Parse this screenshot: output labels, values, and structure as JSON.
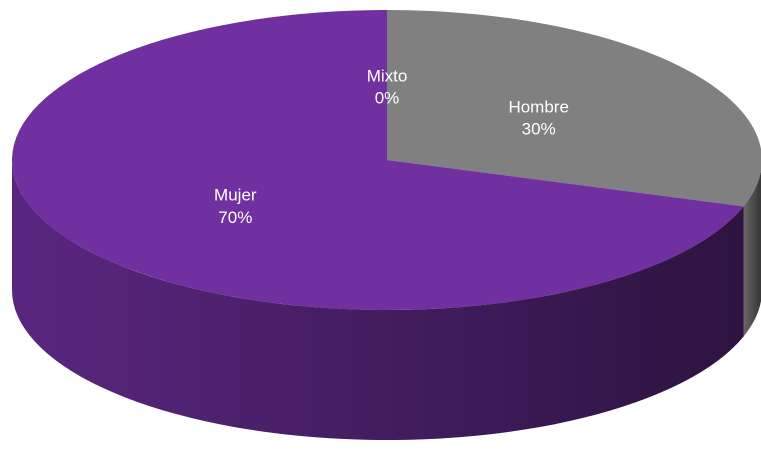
{
  "chart_data": {
    "type": "pie",
    "categories": [
      "Mixto",
      "Hombre",
      "Mujer"
    ],
    "values": [
      0,
      30,
      70
    ],
    "value_labels": [
      "0%",
      "30%",
      "70%"
    ],
    "colors": [
      "#4472c4",
      "#808080",
      "#7030a0"
    ]
  }
}
